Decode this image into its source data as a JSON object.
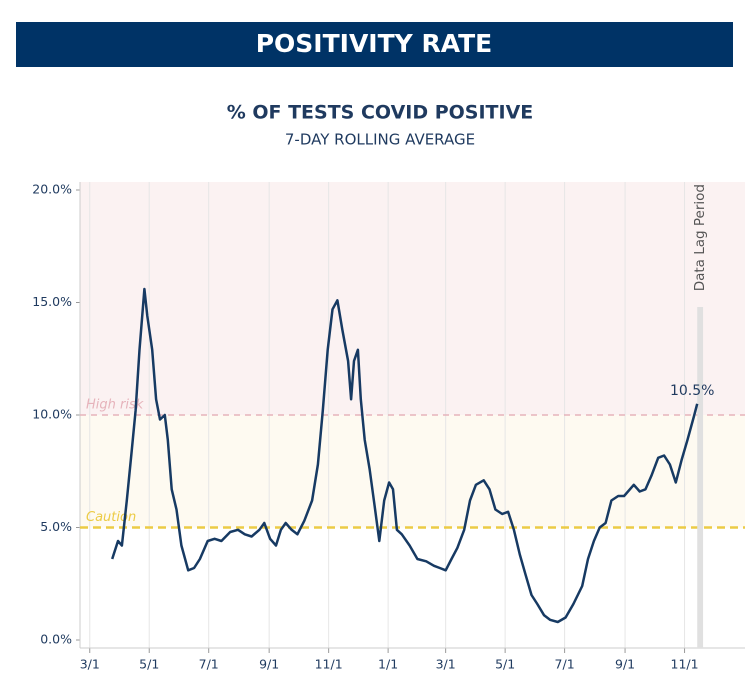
{
  "header": {
    "title": "POSITIVITY RATE"
  },
  "chart_data": {
    "type": "line",
    "title": "% OF TESTS COVID POSITIVE",
    "subtitle": "7-DAY ROLLING AVERAGE",
    "x": [
      23,
      29,
      33,
      38,
      43,
      47,
      51,
      56,
      59,
      64,
      68,
      72,
      77,
      80,
      84,
      89,
      94,
      101,
      107,
      113,
      121,
      128,
      135,
      144,
      152,
      159,
      166,
      174,
      179,
      185,
      191,
      196,
      201,
      207,
      213,
      220,
      228,
      234,
      239,
      244,
      249,
      254,
      259,
      265,
      268,
      271,
      275,
      278,
      282,
      287,
      292,
      297,
      302,
      307,
      311,
      315,
      320,
      328,
      336,
      345,
      353,
      359,
      365,
      371,
      377,
      384,
      390,
      396,
      404,
      410,
      416,
      423,
      429,
      435,
      441,
      447,
      453,
      459,
      466,
      472,
      480,
      488,
      496,
      505,
      511,
      517,
      523,
      529,
      535,
      542,
      548,
      554,
      558,
      564,
      570,
      576,
      583,
      589,
      595,
      601,
      607,
      613,
      620,
      623
    ],
    "series": [
      {
        "name": "Positivity rate",
        "color": "#173a63",
        "values": [
          3.6,
          4.4,
          4.2,
          6.2,
          8.4,
          10.2,
          12.9,
          15.6,
          14.4,
          12.9,
          10.7,
          9.8,
          10.0,
          8.9,
          6.7,
          5.8,
          4.2,
          3.1,
          3.2,
          3.6,
          4.4,
          4.5,
          4.4,
          4.8,
          4.9,
          4.7,
          4.6,
          4.9,
          5.2,
          4.5,
          4.2,
          4.9,
          5.2,
          4.9,
          4.7,
          5.3,
          6.2,
          7.8,
          10.2,
          12.9,
          14.7,
          15.1,
          13.8,
          12.4,
          10.7,
          12.4,
          12.9,
          10.7,
          8.9,
          7.6,
          6.0,
          4.4,
          6.2,
          7.0,
          6.7,
          4.9,
          4.7,
          4.2,
          3.6,
          3.5,
          3.3,
          3.2,
          3.1,
          3.6,
          4.1,
          4.9,
          6.2,
          6.9,
          7.1,
          6.7,
          5.8,
          5.6,
          5.7,
          4.9,
          3.8,
          2.9,
          2.0,
          1.6,
          1.1,
          0.9,
          0.8,
          1.0,
          1.6,
          2.4,
          3.6,
          4.4,
          5.0,
          5.2,
          6.2,
          6.4,
          6.4,
          6.7,
          6.9,
          6.6,
          6.7,
          7.3,
          8.1,
          8.2,
          7.8,
          7.0,
          8.0,
          8.9,
          10.0,
          10.5
        ]
      }
    ],
    "xlim": [
      -10,
      672
    ],
    "xticks": [
      {
        "value": 0,
        "label": "3/1"
      },
      {
        "value": 61,
        "label": "5/1"
      },
      {
        "value": 122,
        "label": "7/1"
      },
      {
        "value": 184,
        "label": "9/1"
      },
      {
        "value": 245,
        "label": "11/1"
      },
      {
        "value": 306,
        "label": "1/1"
      },
      {
        "value": 365,
        "label": "3/1"
      },
      {
        "value": 426,
        "label": "5/1"
      },
      {
        "value": 487,
        "label": "7/1"
      },
      {
        "value": 549,
        "label": "9/1"
      },
      {
        "value": 610,
        "label": "11/1"
      }
    ],
    "ylim": [
      0,
      20
    ],
    "yticks": [
      {
        "value": 0,
        "label": "0.0%"
      },
      {
        "value": 5,
        "label": "5.0%"
      },
      {
        "value": 10,
        "label": "10.0%"
      },
      {
        "value": 15,
        "label": "15.0%"
      },
      {
        "value": 20,
        "label": "20.0%"
      }
    ],
    "grid": true,
    "thresholds": [
      {
        "label": "High risk",
        "value": 10,
        "color": "#e6b3bb",
        "band": "#fbf2f2"
      },
      {
        "label": "Caution",
        "value": 5,
        "color": "#eccb45",
        "band": "#fefaf1"
      }
    ],
    "lag_period": {
      "label": "Data Lag Period",
      "x": [
        623,
        629
      ]
    },
    "annotations": [
      {
        "text": "10.5%",
        "x": 623,
        "y": 10.5
      }
    ]
  }
}
